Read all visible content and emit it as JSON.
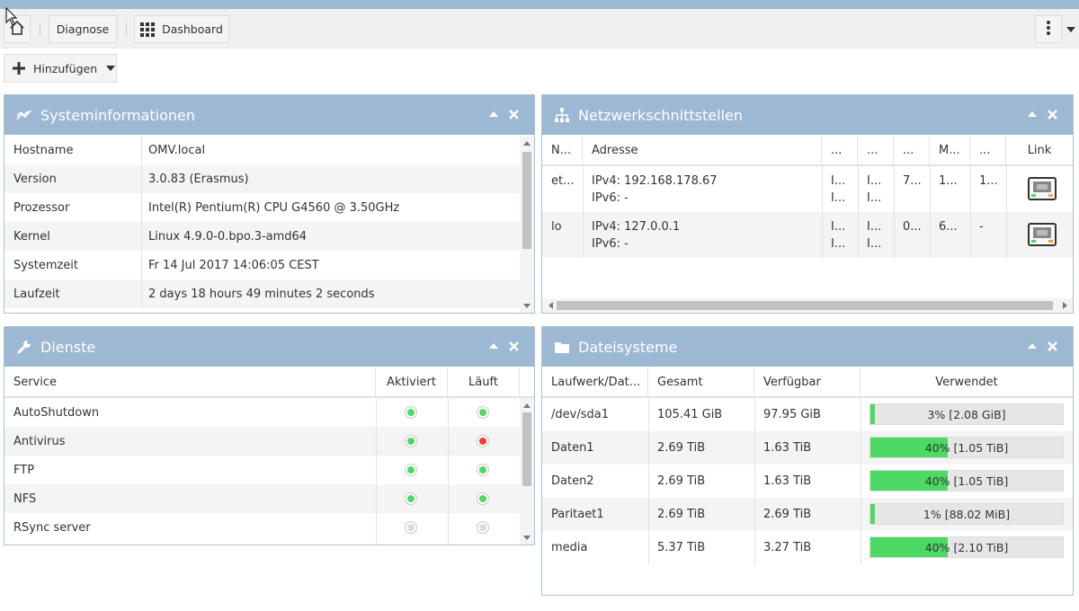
{
  "toolbar": {
    "home_icon": "home-icon",
    "diagnose_label": "Diagnose",
    "dashboard_label": "Dashboard",
    "add_label": "Hinzufügen"
  },
  "colors": {
    "header": "#9db8d2",
    "ok": "#4cd964",
    "error": "#ff3b30",
    "inactive": "#dcdcdc"
  },
  "sysinfo": {
    "title": "Systeminformationen",
    "rows": [
      {
        "key": "Hostname",
        "value": "OMV.local"
      },
      {
        "key": "Version",
        "value": "3.0.83 (Erasmus)"
      },
      {
        "key": "Prozessor",
        "value": "Intel(R) Pentium(R) CPU G4560 @ 3.50GHz"
      },
      {
        "key": "Kernel",
        "value": "Linux 4.9.0-0.bpo.3-amd64"
      },
      {
        "key": "Systemzeit",
        "value": "Fr 14 Jul 2017 14:06:05 CEST"
      },
      {
        "key": "Laufzeit",
        "value": "2 days 18 hours 49 minutes 2 seconds"
      }
    ]
  },
  "network": {
    "title": "Netzwerkschnittstellen",
    "columns": [
      "N...",
      "Adresse",
      "...",
      "...",
      "...",
      "M...",
      "...",
      "Link"
    ],
    "rows": [
      {
        "name": "et...",
        "ipv4": "IPv4: 192.168.178.67",
        "ipv6": "IPv6: -",
        "c3a": "I...",
        "c3b": "I...",
        "c4a": "I...",
        "c4b": "I...",
        "c5": "7...",
        "c6": "1...",
        "c7": "1..."
      },
      {
        "name": "lo",
        "ipv4": "IPv4: 127.0.0.1",
        "ipv6": "IPv6: -",
        "c3a": "I...",
        "c3b": "I...",
        "c4a": "I...",
        "c4b": "I...",
        "c5": "0...",
        "c6": "6...",
        "c7": "-"
      }
    ]
  },
  "services": {
    "title": "Dienste",
    "columns": [
      "Service",
      "Aktiviert",
      "Läuft"
    ],
    "rows": [
      {
        "name": "AutoShutdown",
        "enabled": "ok",
        "running": "ok"
      },
      {
        "name": "Antivirus",
        "enabled": "ok",
        "running": "error"
      },
      {
        "name": "FTP",
        "enabled": "ok",
        "running": "ok"
      },
      {
        "name": "NFS",
        "enabled": "ok",
        "running": "ok"
      },
      {
        "name": "RSync server",
        "enabled": "inactive",
        "running": "inactive"
      }
    ]
  },
  "filesystems": {
    "title": "Dateisysteme",
    "columns": [
      "Laufwerk/Dat...",
      "Gesamt",
      "Verfügbar",
      "Verwendet"
    ],
    "rows": [
      {
        "device": "/dev/sda1",
        "total": "105.41 GiB",
        "available": "97.95 GiB",
        "used_percent": 3,
        "used_label": "3% [2.08 GiB]"
      },
      {
        "device": "Daten1",
        "total": "2.69 TiB",
        "available": "1.63 TiB",
        "used_percent": 40,
        "used_label": "40% [1.05 TiB]"
      },
      {
        "device": "Daten2",
        "total": "2.69 TiB",
        "available": "1.63 TiB",
        "used_percent": 40,
        "used_label": "40% [1.05 TiB]"
      },
      {
        "device": "Paritaet1",
        "total": "2.69 TiB",
        "available": "2.69 TiB",
        "used_percent": 1,
        "used_label": "1% [88.02 MiB]"
      },
      {
        "device": "media",
        "total": "5.37 TiB",
        "available": "3.27 TiB",
        "used_percent": 40,
        "used_label": "40% [2.10 TiB]"
      }
    ]
  }
}
